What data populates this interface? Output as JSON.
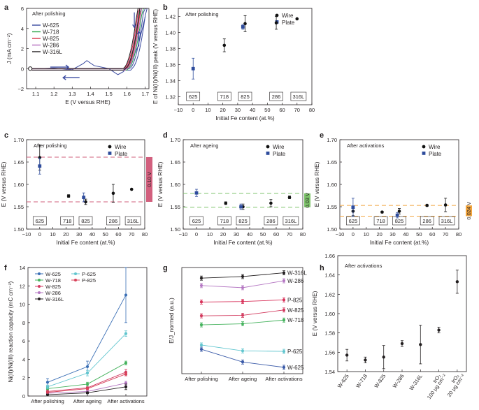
{
  "chart_data": [
    {
      "panel": "a",
      "type": "line",
      "title": "After polishing",
      "xlabel": "E (V versus RHE)",
      "ylabel": "J (mA cm⁻²)",
      "xlim": [
        1.05,
        1.72
      ],
      "ylim": [
        -2,
        6
      ],
      "xticks": [
        "1.1",
        "1.2",
        "1.3",
        "1.4",
        "1.5",
        "1.6",
        "1.7"
      ],
      "yticks": [
        "−2",
        "0",
        "2",
        "4",
        "6"
      ],
      "series": [
        {
          "name": "W-625",
          "color": "#3a4aa0",
          "onset": 1.61,
          "extras": [
            [
              1.1,
              -0.02
            ],
            [
              1.2,
              0.05
            ],
            [
              1.3,
              -0.1
            ],
            [
              1.36,
              0.5
            ],
            [
              1.38,
              0.8
            ],
            [
              1.42,
              0.3
            ],
            [
              1.5,
              0.0
            ],
            [
              1.55,
              -0.6
            ],
            [
              1.58,
              -0.3
            ],
            [
              1.62,
              0.6
            ],
            [
              1.66,
              2.2
            ],
            [
              1.7,
              5.2
            ]
          ]
        },
        {
          "name": "W-718",
          "color": "#2ea64a",
          "onset": 1.59
        },
        {
          "name": "W-825",
          "color": "#d8324a",
          "onset": 1.58
        },
        {
          "name": "W-286",
          "color": "#b46cbf",
          "onset": 1.585
        },
        {
          "name": "W-316L",
          "color": "#231f20",
          "onset": 1.575
        }
      ]
    },
    {
      "panel": "b",
      "type": "scatter",
      "title": "After polishing",
      "xlabel": "Initial Fe content (at.%)",
      "ylabel": "E of Ni(II)/Ni(III) peak (V versus RHE)",
      "xlim": [
        -10,
        80
      ],
      "ylim": [
        1.31,
        1.43
      ],
      "xticks": [
        "−10",
        "0",
        "10",
        "20",
        "30",
        "40",
        "50",
        "60",
        "70",
        "80"
      ],
      "yticks": [
        "1.32",
        "1.34",
        "1.36",
        "1.38",
        "1.40",
        "1.42"
      ],
      "legend": [
        "Wire",
        "Plate"
      ],
      "alloys": [
        {
          "label": "625",
          "x": 0
        },
        {
          "label": "718",
          "x": 21
        },
        {
          "label": "825",
          "x": 35
        },
        {
          "label": "286",
          "x": 56
        },
        {
          "label": "316L",
          "x": 71
        }
      ],
      "wire": [
        {
          "x": 21,
          "y": 1.384,
          "err": 0.008
        },
        {
          "x": 35,
          "y": 1.411,
          "err": 0.01
        },
        {
          "x": 56,
          "y": 1.412,
          "err": 0.008
        },
        {
          "x": 70,
          "y": 1.417,
          "err": 0
        }
      ],
      "plate": [
        {
          "x": 0,
          "y": 1.355,
          "err": 0.013
        },
        {
          "x": 33.5,
          "y": 1.407,
          "err": 0.003
        }
      ]
    },
    {
      "panel": "c",
      "type": "scatter",
      "title": "After polishing",
      "xlabel": "Initial Fe content (at.%)",
      "ylabel": "E (V versus RHE)",
      "xlim": [
        -10,
        80
      ],
      "ylim": [
        1.5,
        1.7
      ],
      "xticks": [
        "−10",
        "0",
        "10",
        "20",
        "30",
        "40",
        "50",
        "60",
        "70",
        "80"
      ],
      "yticks": [
        "1.50",
        "1.55",
        "1.60",
        "1.65",
        "1.70"
      ],
      "legend": [
        "Wire",
        "Plate"
      ],
      "alloys": [
        {
          "label": "625",
          "x": 0
        },
        {
          "label": "718",
          "x": 21
        },
        {
          "label": "825",
          "x": 35
        },
        {
          "label": "286",
          "x": 56
        },
        {
          "label": "316L",
          "x": 71
        }
      ],
      "wire": [
        {
          "x": 0,
          "y": 1.66,
          "err": 0.028
        },
        {
          "x": 22,
          "y": 1.574,
          "err": 0.003
        },
        {
          "x": 35,
          "y": 1.561,
          "err": 0.006
        },
        {
          "x": 56,
          "y": 1.58,
          "err": 0.02
        },
        {
          "x": 70,
          "y": 1.589,
          "err": 0
        }
      ],
      "plate": [
        {
          "x": 0,
          "y": 1.641,
          "err": 0.018
        },
        {
          "x": 33.5,
          "y": 1.571,
          "err": 0.01
        }
      ],
      "band": {
        "low": 1.561,
        "high": 1.661,
        "label": "0.10 V",
        "color": "#d2607e"
      }
    },
    {
      "panel": "d",
      "type": "scatter",
      "title": "After ageing",
      "xlabel": "Initial Fe content (at.%)",
      "ylabel": "E (V versus RHE)",
      "xlim": [
        -10,
        80
      ],
      "ylim": [
        1.5,
        1.7
      ],
      "xticks": [
        "−10",
        "0",
        "10",
        "20",
        "30",
        "40",
        "50",
        "60",
        "70",
        "80"
      ],
      "yticks": [
        "1.50",
        "1.55",
        "1.60",
        "1.65",
        "1.70"
      ],
      "legend": [
        "Wire",
        "Plate"
      ],
      "alloys": [
        {
          "label": "625",
          "x": 0
        },
        {
          "label": "718",
          "x": 21
        },
        {
          "label": "825",
          "x": 35
        },
        {
          "label": "286",
          "x": 56
        },
        {
          "label": "316L",
          "x": 71
        }
      ],
      "wire": [
        {
          "x": 22,
          "y": 1.558,
          "err": 0.003
        },
        {
          "x": 35,
          "y": 1.55,
          "err": 0.006
        },
        {
          "x": 56,
          "y": 1.558,
          "err": 0.008
        },
        {
          "x": 70,
          "y": 1.571,
          "err": 0.003
        }
      ],
      "plate": [
        {
          "x": 0,
          "y": 1.581,
          "err": 0.008
        },
        {
          "x": 33.5,
          "y": 1.55,
          "err": 0.006
        }
      ],
      "band": {
        "low": 1.549,
        "high": 1.58,
        "label": "0.03 V",
        "color": "#7ec46b"
      }
    },
    {
      "panel": "e",
      "type": "scatter",
      "title": "After activations",
      "xlabel": "Initial Fe content (at.%)",
      "ylabel": "E (V versus RHE)",
      "xlim": [
        -10,
        80
      ],
      "ylim": [
        1.5,
        1.7
      ],
      "xticks": [
        "−10",
        "0",
        "10",
        "20",
        "30",
        "40",
        "50",
        "60",
        "70",
        "80"
      ],
      "yticks": [
        "1.50",
        "1.55",
        "1.60",
        "1.65",
        "1.70"
      ],
      "legend": [
        "Wire",
        "Plate"
      ],
      "alloys": [
        {
          "label": "625",
          "x": 0
        },
        {
          "label": "718",
          "x": 21
        },
        {
          "label": "825",
          "x": 35
        },
        {
          "label": "286",
          "x": 56
        },
        {
          "label": "316L",
          "x": 71
        }
      ],
      "wire": [
        {
          "x": 0,
          "y": 1.54,
          "err": 0.01
        },
        {
          "x": 22,
          "y": 1.538,
          "err": 0.002
        },
        {
          "x": 35,
          "y": 1.54,
          "err": 0.006
        },
        {
          "x": 56,
          "y": 1.553,
          "err": 0.002
        },
        {
          "x": 70,
          "y": 1.554,
          "err": 0.015
        }
      ],
      "plate": [
        {
          "x": 0,
          "y": 1.549,
          "err": 0.02
        },
        {
          "x": 33.5,
          "y": 1.531,
          "err": 0.006
        }
      ],
      "band": {
        "low": 1.529,
        "high": 1.553,
        "label": "0.024 V",
        "color": "#f1a53f"
      }
    },
    {
      "panel": "f",
      "type": "line",
      "ylabel": "Ni(II)/Ni(III) reaction capacity (mC cm⁻²)",
      "categories": [
        "After polishing",
        "After ageing",
        "After activations"
      ],
      "ylim": [
        0,
        14
      ],
      "yticks": [
        "0",
        "2",
        "4",
        "6",
        "8",
        "10",
        "12",
        "14"
      ],
      "series": [
        {
          "name": "W-625",
          "color": "#3a6fb5",
          "values": [
            1.5,
            3.2,
            11.0
          ],
          "err": [
            0.4,
            0.6,
            3.0
          ]
        },
        {
          "name": "W-718",
          "color": "#46b35e",
          "values": [
            0.8,
            1.3,
            3.6
          ],
          "err": [
            0.1,
            0.2,
            0.2
          ]
        },
        {
          "name": "W-825",
          "color": "#d23a60",
          "values": [
            0.5,
            0.9,
            2.6
          ],
          "err": [
            0.1,
            0.1,
            0.3
          ]
        },
        {
          "name": "W-286",
          "color": "#b578c3",
          "values": [
            0.3,
            0.5,
            1.4
          ],
          "err": [
            0.05,
            0.1,
            0.2
          ]
        },
        {
          "name": "W-316L",
          "color": "#231f20",
          "values": [
            0.15,
            0.35,
            1.0
          ],
          "err": [
            0.05,
            0.1,
            0.3
          ]
        },
        {
          "name": "P-625",
          "color": "#62c6cf",
          "values": [
            1.0,
            2.5,
            6.8
          ],
          "err": [
            0.2,
            0.3,
            0.3
          ]
        },
        {
          "name": "P-825",
          "color": "#d8425a",
          "values": [
            0.4,
            0.8,
            2.4
          ],
          "err": [
            0.05,
            0.1,
            0.2
          ]
        }
      ]
    },
    {
      "panel": "g",
      "type": "line",
      "ylabel": "E/J_normed (a.u.)",
      "categories": [
        "After polishing",
        "After ageing",
        "After activations"
      ],
      "ylim": [
        0,
        10
      ],
      "series": [
        {
          "name": "W-316L",
          "color": "#231f20",
          "values": [
            9.0,
            9.15,
            9.5
          ]
        },
        {
          "name": "W-286",
          "color": "#b578c3",
          "values": [
            8.3,
            8.1,
            8.75
          ]
        },
        {
          "name": "P-825",
          "color": "#d8325a",
          "values": [
            6.75,
            6.8,
            6.95
          ]
        },
        {
          "name": "W-825",
          "color": "#d23a5e",
          "values": [
            5.45,
            5.5,
            6.0
          ]
        },
        {
          "name": "W-718",
          "color": "#46b35e",
          "values": [
            4.6,
            4.7,
            5.05
          ]
        },
        {
          "name": "P-625",
          "color": "#62c6cf",
          "values": [
            2.7,
            2.15,
            2.1
          ]
        },
        {
          "name": "W-625",
          "color": "#3a5aa8",
          "values": [
            2.3,
            1.1,
            0.6
          ]
        }
      ]
    },
    {
      "panel": "h",
      "type": "scatter",
      "title": "After activations",
      "ylabel": "E (V versus RHE)",
      "categories": [
        "W-625",
        "W-718",
        "W-825",
        "W-286",
        "W-316L",
        "IrO₂ 100 μg cm⁻²",
        "IrO₂ 20 μg cm⁻²"
      ],
      "cat_line1": [
        "W-625",
        "W-718",
        "W-825",
        "W-286",
        "W-316L",
        "IrO₂",
        "IrO₂"
      ],
      "cat_line2": [
        "",
        "",
        "",
        "",
        "",
        "100 μg cm⁻²",
        "20 μg cm⁻²"
      ],
      "values": [
        1.557,
        1.552,
        1.555,
        1.569,
        1.568,
        1.583,
        1.633
      ],
      "err": [
        0.006,
        0.003,
        0.012,
        0.003,
        0.02,
        0.003,
        0.012
      ],
      "ylim": [
        1.54,
        1.66
      ],
      "yticks": [
        "1.54",
        "1.56",
        "1.58",
        "1.60",
        "1.62",
        "1.64",
        "1.66"
      ]
    }
  ]
}
